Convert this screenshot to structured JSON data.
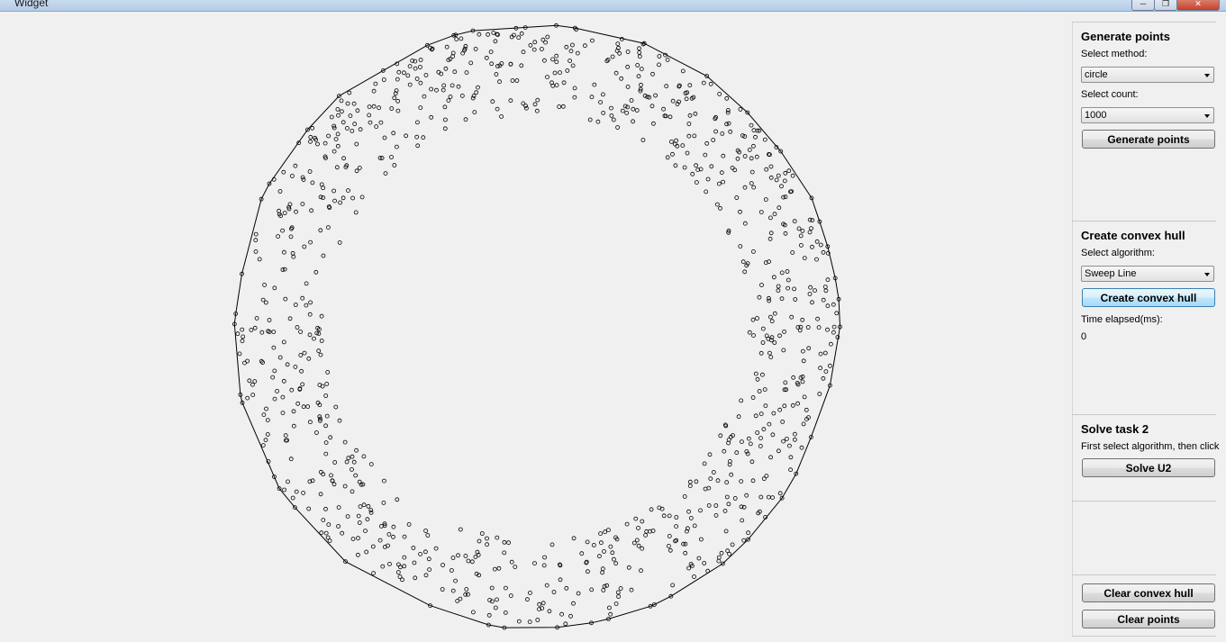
{
  "window": {
    "title": "Widget",
    "minimize_glyph": "─",
    "maximize_glyph": "❐",
    "close_glyph": "✕"
  },
  "generate": {
    "title": "Generate points",
    "method_label": "Select method:",
    "method_value": "circle",
    "count_label": "Select count:",
    "count_value": "1000",
    "button": "Generate points"
  },
  "hull": {
    "title": "Create convex hull",
    "algorithm_label": "Select algorithm:",
    "algorithm_value": "Sweep Line",
    "button": "Create convex hull",
    "time_label": "Time elapsed(ms):",
    "time_value": "0"
  },
  "task2": {
    "title": "Solve task 2",
    "hint": "First select algorithm, then click",
    "button": "Solve U2"
  },
  "clear": {
    "hull_button": "Clear convex hull",
    "points_button": "Clear points"
  },
  "canvas": {
    "point_count": 1000,
    "ring_inner_fraction": 0.7,
    "point_color": "#000000",
    "hull_color": "#000000"
  }
}
